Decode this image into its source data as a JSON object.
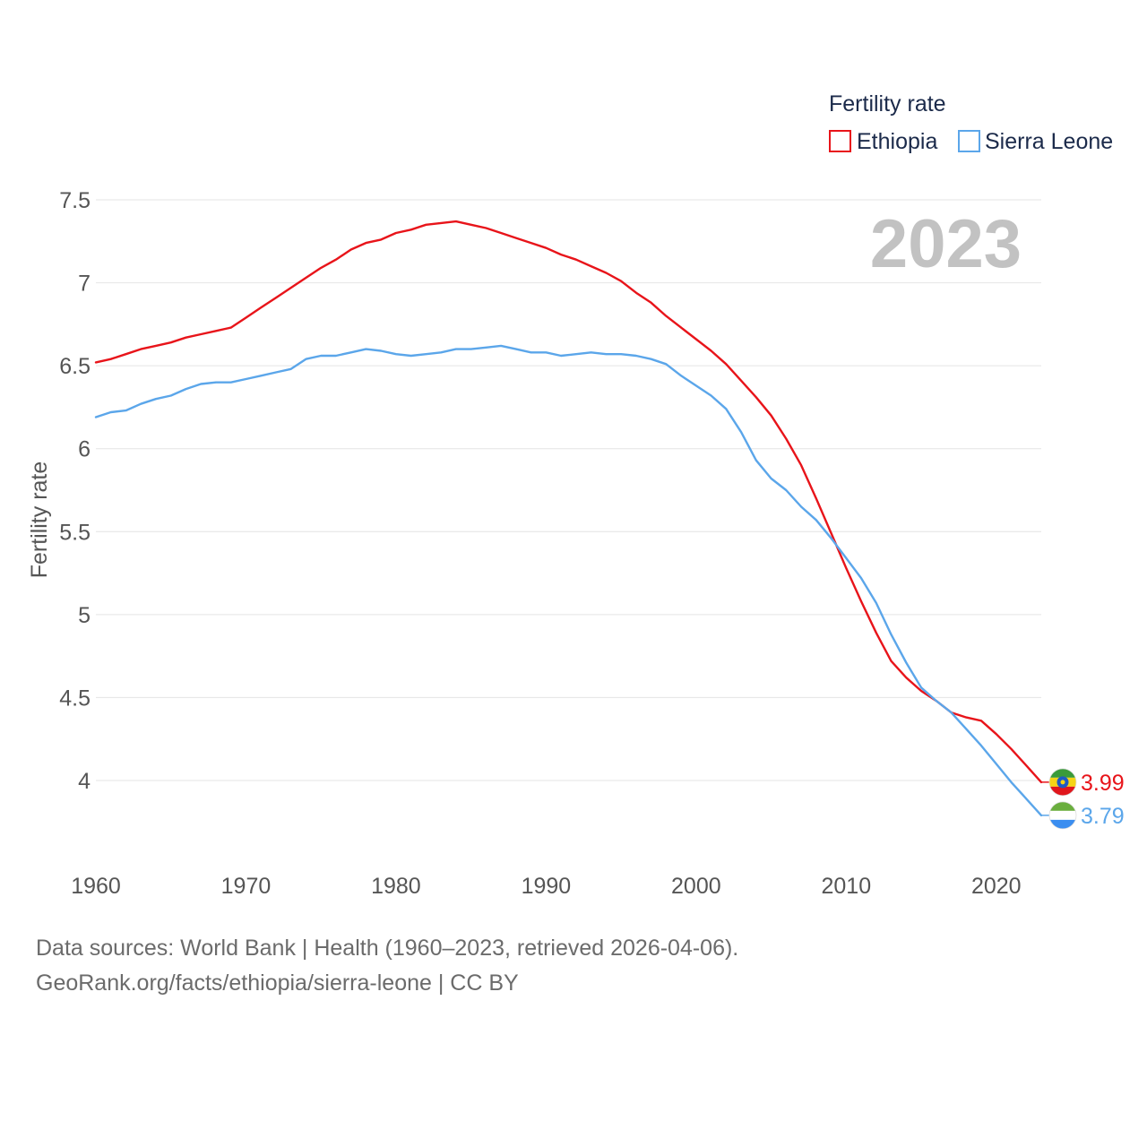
{
  "chart_data": {
    "type": "line",
    "title": "",
    "legend_title": "Fertility rate",
    "legend_position": "top-right",
    "year_watermark": "2023",
    "xlabel": "",
    "ylabel": "Fertility rate",
    "xlim": [
      1960,
      2023
    ],
    "ylim": [
      3.6,
      7.5
    ],
    "x_ticks": [
      1960,
      1970,
      1980,
      1990,
      2000,
      2010,
      2020
    ],
    "y_ticks": [
      4,
      4.5,
      5,
      5.5,
      6,
      6.5,
      7,
      7.5
    ],
    "y_tick_labels": [
      "4",
      "4.5",
      "5",
      "5.5",
      "6",
      "6.5",
      "7",
      "7.5"
    ],
    "grid": true,
    "x": [
      1960,
      1961,
      1962,
      1963,
      1964,
      1965,
      1966,
      1967,
      1968,
      1969,
      1970,
      1971,
      1972,
      1973,
      1974,
      1975,
      1976,
      1977,
      1978,
      1979,
      1980,
      1981,
      1982,
      1983,
      1984,
      1985,
      1986,
      1987,
      1988,
      1989,
      1990,
      1991,
      1992,
      1993,
      1994,
      1995,
      1996,
      1997,
      1998,
      1999,
      2000,
      2001,
      2002,
      2003,
      2004,
      2005,
      2006,
      2007,
      2008,
      2009,
      2010,
      2011,
      2012,
      2013,
      2014,
      2015,
      2016,
      2017,
      2018,
      2019,
      2020,
      2021,
      2022,
      2023
    ],
    "series": [
      {
        "name": "Ethiopia",
        "color": "#e8141a",
        "end_label": "3.99",
        "flag": "ethiopia-flag",
        "values": [
          6.52,
          6.54,
          6.57,
          6.6,
          6.62,
          6.64,
          6.67,
          6.69,
          6.71,
          6.73,
          6.79,
          6.85,
          6.91,
          6.97,
          7.03,
          7.09,
          7.14,
          7.2,
          7.24,
          7.26,
          7.3,
          7.32,
          7.35,
          7.36,
          7.37,
          7.35,
          7.33,
          7.3,
          7.27,
          7.24,
          7.21,
          7.17,
          7.14,
          7.1,
          7.06,
          7.01,
          6.94,
          6.88,
          6.8,
          6.73,
          6.66,
          6.59,
          6.51,
          6.41,
          6.31,
          6.2,
          6.06,
          5.9,
          5.7,
          5.49,
          5.28,
          5.08,
          4.89,
          4.72,
          4.62,
          4.54,
          4.48,
          4.41,
          4.38,
          4.36,
          4.28,
          4.19,
          4.09,
          3.99
        ]
      },
      {
        "name": "Sierra Leone",
        "color": "#5ba6ea",
        "end_label": "3.79",
        "flag": "sierra-leone-flag",
        "values": [
          6.19,
          6.22,
          6.23,
          6.27,
          6.3,
          6.32,
          6.36,
          6.39,
          6.4,
          6.4,
          6.42,
          6.44,
          6.46,
          6.48,
          6.54,
          6.56,
          6.56,
          6.58,
          6.6,
          6.59,
          6.57,
          6.56,
          6.57,
          6.58,
          6.6,
          6.6,
          6.61,
          6.62,
          6.6,
          6.58,
          6.58,
          6.56,
          6.57,
          6.58,
          6.57,
          6.57,
          6.56,
          6.54,
          6.51,
          6.44,
          6.38,
          6.32,
          6.24,
          6.1,
          5.93,
          5.82,
          5.75,
          5.65,
          5.57,
          5.46,
          5.34,
          5.22,
          5.07,
          4.88,
          4.71,
          4.56,
          4.48,
          4.41,
          4.31,
          4.21,
          4.1,
          3.99,
          3.89,
          3.79
        ]
      }
    ]
  },
  "footer": {
    "line1": "Data sources: World Bank | Health (1960–2023, retrieved 2026-04-06).",
    "line2": "GeoRank.org/facts/ethiopia/sierra-leone | CC BY"
  }
}
